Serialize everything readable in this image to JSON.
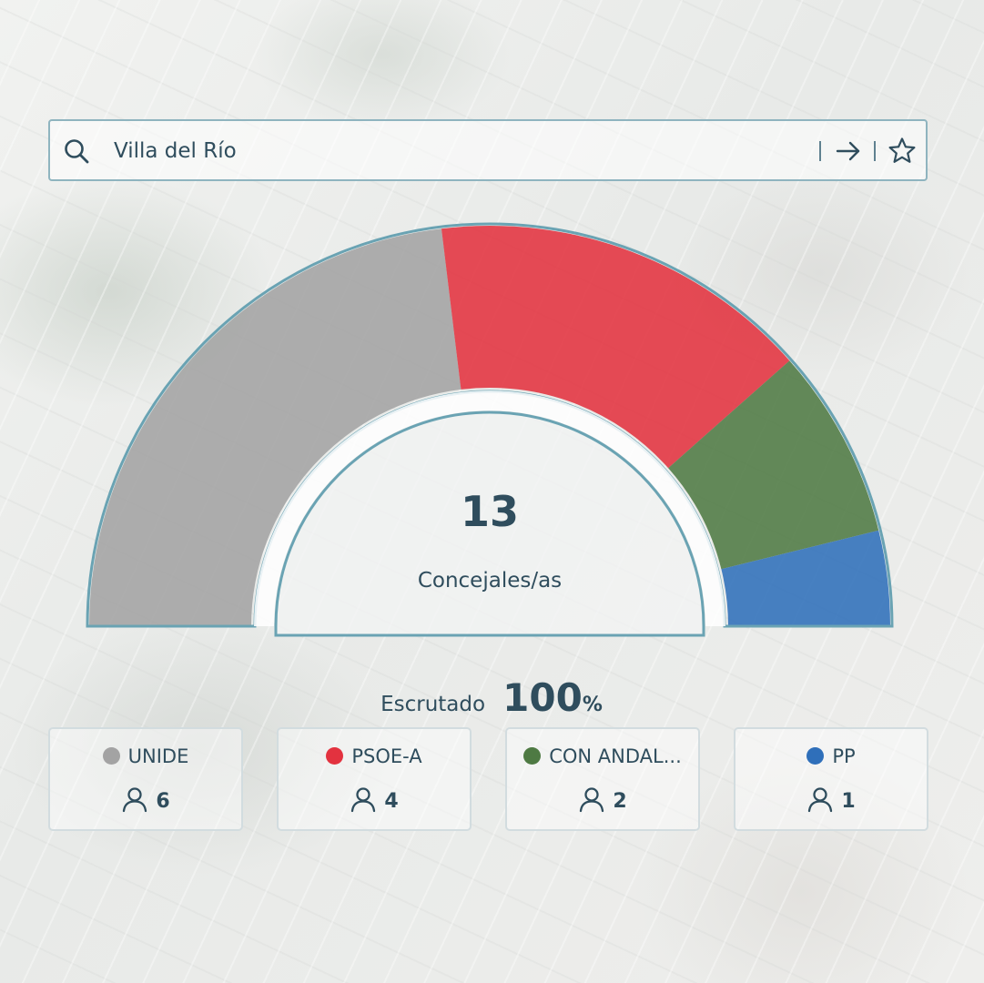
{
  "search": {
    "value": "Villa del Río",
    "icons": [
      "search-icon",
      "arrow-right-icon",
      "star-icon"
    ]
  },
  "hemicycle": {
    "total": "13",
    "label": "Concejales/as"
  },
  "scrutiny": {
    "label": "Escrutado",
    "value": "100",
    "unit": "%"
  },
  "parties": [
    {
      "name": "UNIDE",
      "seats": "6",
      "color": "#a3a3a3"
    },
    {
      "name": "PSOE-A",
      "seats": "4",
      "color": "#e3323f"
    },
    {
      "name": "CON ANDAL...",
      "seats": "2",
      "color": "#4e7a43"
    },
    {
      "name": "PP",
      "seats": "1",
      "color": "#2f6fba"
    }
  ],
  "chart_data": {
    "type": "pie",
    "categories": [
      "UNIDE",
      "PSOE-A",
      "CON ANDAL...",
      "PP"
    ],
    "values": [
      6,
      4,
      2,
      1
    ],
    "colors": [
      "#a3a3a3",
      "#e3323f",
      "#4e7a43",
      "#2f6fba"
    ]
  }
}
